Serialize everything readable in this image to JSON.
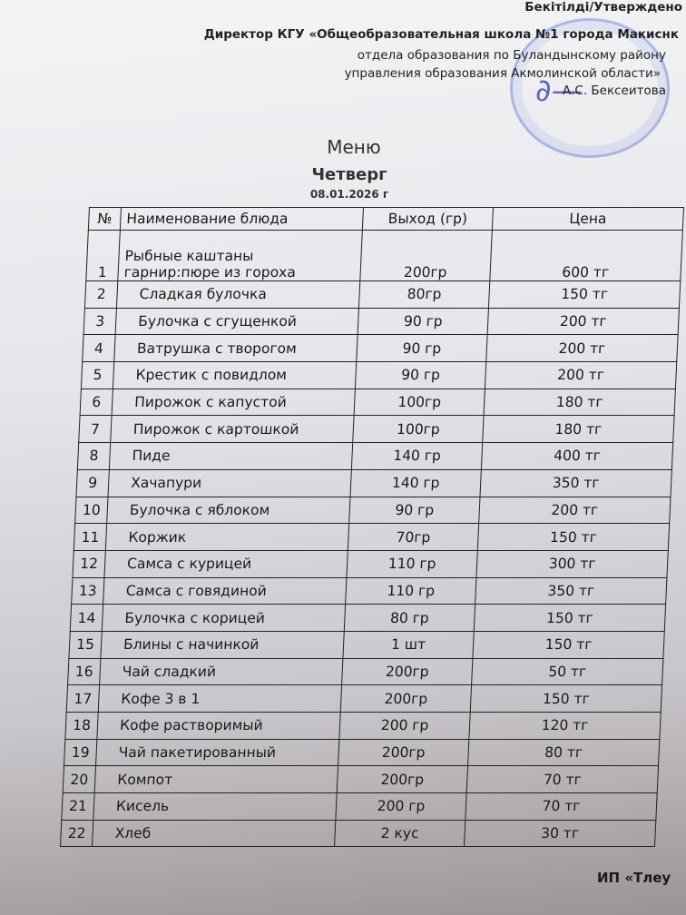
{
  "header": {
    "approved": "Бекітілді/Утверждено",
    "line1": "Директор КГУ «Общеобразовательная школа №1 города Макиснк",
    "line2": "отдела образования по Буландынскому району",
    "line3": "управления образования Акмолинской области»",
    "signatory": "А.С. Бексеитова"
  },
  "title": "Меню",
  "day": "Четверг",
  "date": "08.01.2026 г",
  "table": {
    "columns": [
      "№",
      "Наименование блюда",
      "Выход (гр)",
      "Цена"
    ],
    "rows": [
      {
        "n": "1",
        "name": "Рыбные каштаны",
        "name2": "гарнир:пюре из гороха",
        "weight": "200гр",
        "price": "600 тг"
      },
      {
        "n": "2",
        "name": "Сладкая булочка",
        "weight": "80гр",
        "price": "150 тг"
      },
      {
        "n": "3",
        "name": "Булочка с сгущенкой",
        "weight": "90 гр",
        "price": "200 тг"
      },
      {
        "n": "4",
        "name": "Ватрушка с творогом",
        "weight": "90 гр",
        "price": "200 тг"
      },
      {
        "n": "5",
        "name": "Крестик с повидлом",
        "weight": "90 гр",
        "price": "200 тг"
      },
      {
        "n": "6",
        "name": "Пирожок с капустой",
        "weight": "100гр",
        "price": "180 тг"
      },
      {
        "n": "7",
        "name": "Пирожок с картошкой",
        "weight": "100гр",
        "price": "180 тг"
      },
      {
        "n": "8",
        "name": "Пиде",
        "weight": "140 гр",
        "price": "400 тг"
      },
      {
        "n": "9",
        "name": "Хачапури",
        "weight": "140 гр",
        "price": "350 тг"
      },
      {
        "n": "10",
        "name": "Булочка с яблоком",
        "weight": "90 гр",
        "price": "200 тг"
      },
      {
        "n": "11",
        "name": "Коржик",
        "weight": "70гр",
        "price": "150 тг"
      },
      {
        "n": "12",
        "name": "Самса с курицей",
        "weight": "110 гр",
        "price": "300 тг"
      },
      {
        "n": "13",
        "name": "Самса с говядиной",
        "weight": "110 гр",
        "price": "350 тг"
      },
      {
        "n": "14",
        "name": "Булочка с корицей",
        "weight": "80 гр",
        "price": "150 тг"
      },
      {
        "n": "15",
        "name": "Блины с начинкой",
        "weight": "1 шт",
        "price": "150 тг"
      },
      {
        "n": "16",
        "name": "Чай сладкий",
        "weight": "200гр",
        "price": "50 тг"
      },
      {
        "n": "17",
        "name": "Кофе 3 в 1",
        "weight": "200гр",
        "price": "150 тг"
      },
      {
        "n": "18",
        "name": "Кофе растворимый",
        "weight": "200 гр",
        "price": "120 тг"
      },
      {
        "n": "19",
        "name": "Чай пакетированный",
        "weight": "200гр",
        "price": "80 тг"
      },
      {
        "n": "20",
        "name": "Компот",
        "weight": "200гр",
        "price": "70 тг"
      },
      {
        "n": "21",
        "name": "Кисель",
        "weight": "200 гр",
        "price": "70 тг"
      },
      {
        "n": "22",
        "name": "Хлеб",
        "weight": "2 кус",
        "price": "30 тг"
      }
    ]
  },
  "footer": "ИП «Тлеу"
}
